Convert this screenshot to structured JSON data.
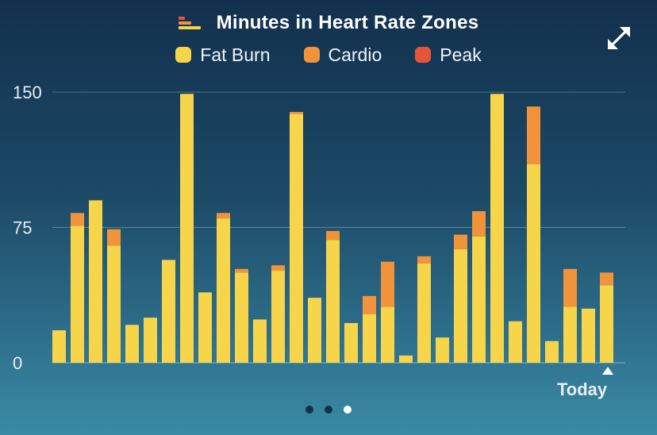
{
  "header": {
    "title": "Minutes in Heart Rate Zones",
    "icon": "heart-zones-icon",
    "expand_icon": "expand-icon"
  },
  "legend": [
    {
      "label": "Fat Burn",
      "color": "#f6d54a"
    },
    {
      "label": "Cardio",
      "color": "#f0933a"
    },
    {
      "label": "Peak",
      "color": "#e6553a"
    }
  ],
  "footer": {
    "today_label": "Today",
    "page_count": 3,
    "active_page": 2
  },
  "chart_data": {
    "type": "bar",
    "stacked": true,
    "title": "Minutes in Heart Rate Zones",
    "xlabel": "",
    "ylabel": "",
    "ylim": [
      0,
      150
    ],
    "yticks": [
      "0",
      "75",
      "150"
    ],
    "grid": true,
    "legend_position": "top",
    "series": [
      {
        "name": "Fat Burn",
        "color": "#f6d54a",
        "values": [
          18,
          76,
          90,
          65,
          21,
          25,
          57,
          149,
          39,
          80,
          50,
          24,
          51,
          138,
          36,
          68,
          22,
          27,
          31,
          4,
          55,
          14,
          63,
          70,
          149,
          23,
          110,
          12,
          31,
          30,
          43
        ]
      },
      {
        "name": "Cardio",
        "color": "#f0933a",
        "values": [
          0,
          7,
          0,
          9,
          0,
          0,
          0,
          0,
          0,
          3,
          2,
          0,
          3,
          1,
          0,
          5,
          0,
          10,
          25,
          0,
          4,
          0,
          8,
          14,
          0,
          0,
          32,
          0,
          21,
          0,
          7
        ]
      },
      {
        "name": "Peak",
        "color": "#e6553a",
        "values": [
          0,
          0,
          0,
          0,
          0,
          0,
          0,
          0,
          0,
          0,
          0,
          0,
          0,
          0,
          0,
          0,
          0,
          0,
          0,
          0,
          0,
          0,
          0,
          0,
          0,
          0,
          0,
          0,
          0,
          0,
          0
        ]
      }
    ]
  }
}
